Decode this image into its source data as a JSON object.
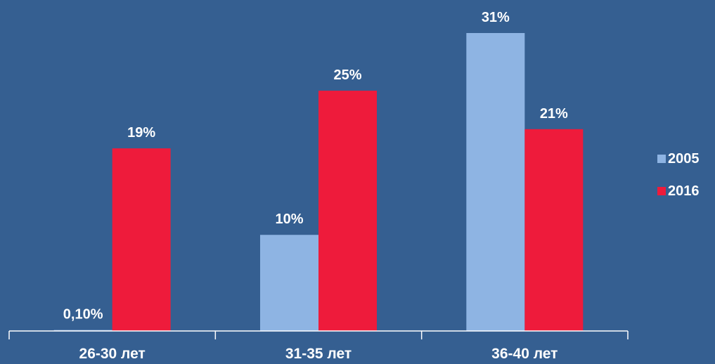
{
  "chart_data": {
    "type": "bar",
    "categories": [
      "26-30 лет",
      "31-35 лет",
      "36-40 лет"
    ],
    "series": [
      {
        "name": "2005",
        "color": "#8eb4e3",
        "values": [
          0.1,
          10,
          31
        ],
        "labels": [
          "0,10%",
          "10%",
          "31%"
        ]
      },
      {
        "name": "2016",
        "color": "#ee1b3b",
        "values": [
          19,
          25,
          21
        ],
        "labels": [
          "19%",
          "25%",
          "21%"
        ]
      }
    ],
    "ylim": [
      0,
      31
    ],
    "grid": false,
    "legend_position": "right"
  }
}
